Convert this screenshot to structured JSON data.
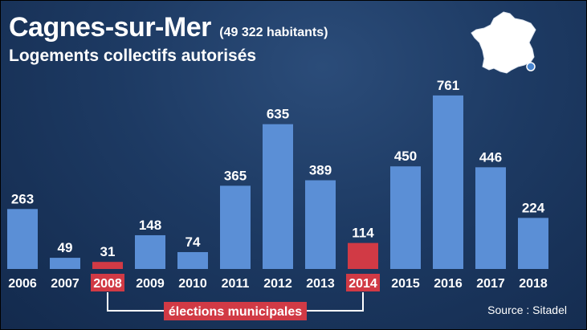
{
  "header": {
    "title": "Cagnes-sur-Mer",
    "population": "(49 322 habitants)",
    "subtitle": "Logements collectifs autorisés"
  },
  "source": "Source : Sitadel",
  "annotation": {
    "label": "élections municipales",
    "from": "2008",
    "to": "2014"
  },
  "colors": {
    "bar": "#5b8fd6",
    "highlight": "#d13a45",
    "background": "#1d3a63",
    "map": "#ffffff",
    "marker": "#4a86d0"
  },
  "icons": {
    "map": "france-map-icon",
    "marker": "city-location-icon"
  },
  "chart_data": {
    "type": "bar",
    "categories": [
      "2006",
      "2007",
      "2008",
      "2009",
      "2010",
      "2011",
      "2012",
      "2013",
      "2014",
      "2015",
      "2016",
      "2017",
      "2018"
    ],
    "values": [
      263,
      49,
      31,
      148,
      74,
      365,
      635,
      389,
      114,
      450,
      761,
      446,
      224
    ],
    "highlighted": [
      "2008",
      "2014"
    ],
    "title": "Logements collectifs autorisés",
    "xlabel": "",
    "ylabel": "",
    "ylim": [
      0,
      800
    ],
    "grid": false,
    "legend": "none"
  }
}
